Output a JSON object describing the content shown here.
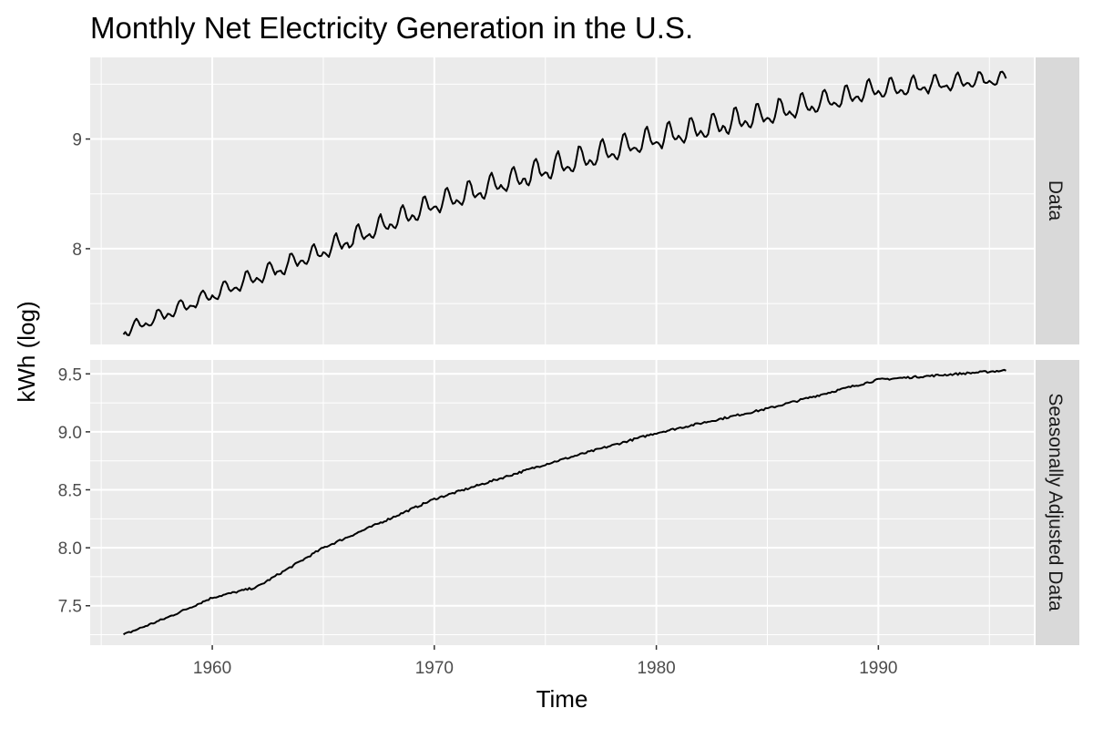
{
  "chart_data": {
    "type": "line",
    "title": "Monthly Net Electricity Generation in the U.S.",
    "xlabel": "Time",
    "ylabel": "kWh (log)",
    "xlim": [
      1954.5,
      1997.0
    ],
    "x_ticks": [
      1960,
      1970,
      1980,
      1990
    ],
    "x_tick_labels": [
      "1960",
      "1970",
      "1980",
      "1990"
    ],
    "x_minor_ticks": [
      1955,
      1965,
      1975,
      1985,
      1995
    ],
    "panels": [
      {
        "strip_label": "Data",
        "ylim": [
          7.127,
          9.744
        ],
        "y_ticks": [
          8,
          9
        ],
        "y_tick_labels": [
          "8",
          "9"
        ],
        "y_minor_ticks": [
          7.5,
          8.5,
          9.5
        ],
        "series": {
          "name": "Data",
          "start": 1956.0,
          "end": 1995.75,
          "step": 0.08333,
          "trend_knots": [
            [
              1956.0,
              7.24
            ],
            [
              1960.0,
              7.58
            ],
            [
              1965.0,
              7.98
            ],
            [
              1970.0,
              8.4
            ],
            [
              1975.0,
              8.72
            ],
            [
              1980.0,
              9.0
            ],
            [
              1985.0,
              9.22
            ],
            [
              1990.0,
              9.45
            ],
            [
              1995.75,
              9.55
            ]
          ],
          "seasonal_amplitude_knots": [
            [
              1956.0,
              0.05
            ],
            [
              1965.0,
              0.08
            ],
            [
              1975.0,
              0.1
            ],
            [
              1985.0,
              0.1
            ],
            [
              1995.75,
              0.06
            ]
          ]
        }
      },
      {
        "strip_label": "Seasonally Adjusted Data",
        "ylim": [
          7.16,
          9.62
        ],
        "y_ticks": [
          7.5,
          8.0,
          8.5,
          9.0,
          9.5
        ],
        "y_tick_labels": [
          "7.5",
          "8.0",
          "8.5",
          "9.0",
          "9.5"
        ],
        "y_minor_ticks": [
          7.25,
          7.75,
          8.25,
          8.75,
          9.25
        ],
        "series": {
          "name": "Seasonally Adjusted Data",
          "start": 1956.0,
          "end": 1995.75,
          "step": 0.08333,
          "trend_knots": [
            [
              1956.0,
              7.25
            ],
            [
              1958.0,
              7.4
            ],
            [
              1960.0,
              7.57
            ],
            [
              1962.0,
              7.66
            ],
            [
              1965.0,
              8.0
            ],
            [
              1970.0,
              8.42
            ],
            [
              1975.0,
              8.72
            ],
            [
              1980.0,
              8.99
            ],
            [
              1985.0,
              9.2
            ],
            [
              1990.0,
              9.45
            ],
            [
              1995.75,
              9.53
            ]
          ]
        }
      }
    ]
  }
}
